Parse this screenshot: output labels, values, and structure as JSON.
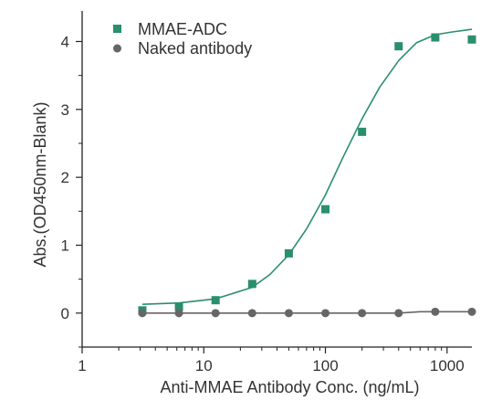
{
  "chart_data": {
    "type": "scatter",
    "title": "",
    "xlabel": "Anti-MMAE Antibody Conc. (ng/mL)",
    "ylabel": "Abs.(OD450nm-Blank)",
    "xscale": "log",
    "xlim": [
      1,
      1600
    ],
    "ylim": [
      -0.5,
      4.45
    ],
    "x_ticks": [
      1,
      10,
      100,
      1000
    ],
    "x_tick_labels": [
      "1",
      "10",
      "100",
      "1000"
    ],
    "y_ticks": [
      0,
      1,
      2,
      3,
      4
    ],
    "y_tick_labels": [
      "0",
      "1",
      "2",
      "3",
      "4"
    ],
    "grid": false,
    "legend_position": "top-left",
    "series": [
      {
        "name": "MMAE-ADC",
        "marker": "square",
        "color": "#2a8f6b",
        "x": [
          3.125,
          6.25,
          12.5,
          25,
          50,
          100,
          200,
          400,
          800,
          1600
        ],
        "y": [
          0.04,
          0.09,
          0.19,
          0.43,
          0.88,
          1.53,
          2.67,
          3.93,
          4.06,
          4.03
        ],
        "fit": {
          "x": [
            3.125,
            6.25,
            12.5,
            25,
            35,
            50,
            70,
            100,
            140,
            200,
            280,
            400,
            560,
            800,
            1100,
            1600
          ],
          "y": [
            0.13,
            0.15,
            0.21,
            0.38,
            0.57,
            0.86,
            1.24,
            1.74,
            2.3,
            2.86,
            3.33,
            3.72,
            3.98,
            4.1,
            4.14,
            4.18
          ]
        }
      },
      {
        "name": "Naked antibody",
        "marker": "circle",
        "color": "#666666",
        "x": [
          3.125,
          6.25,
          12.5,
          25,
          50,
          100,
          200,
          400,
          800,
          1600
        ],
        "y": [
          0.0,
          0.0,
          0.0,
          0.0,
          0.0,
          0.0,
          0.0,
          0.0,
          0.02,
          0.02
        ],
        "fit": {
          "x": [
            3.125,
            400,
            600,
            800,
            1600
          ],
          "y": [
            0.0,
            0.0,
            0.02,
            0.02,
            0.02
          ]
        }
      }
    ]
  }
}
